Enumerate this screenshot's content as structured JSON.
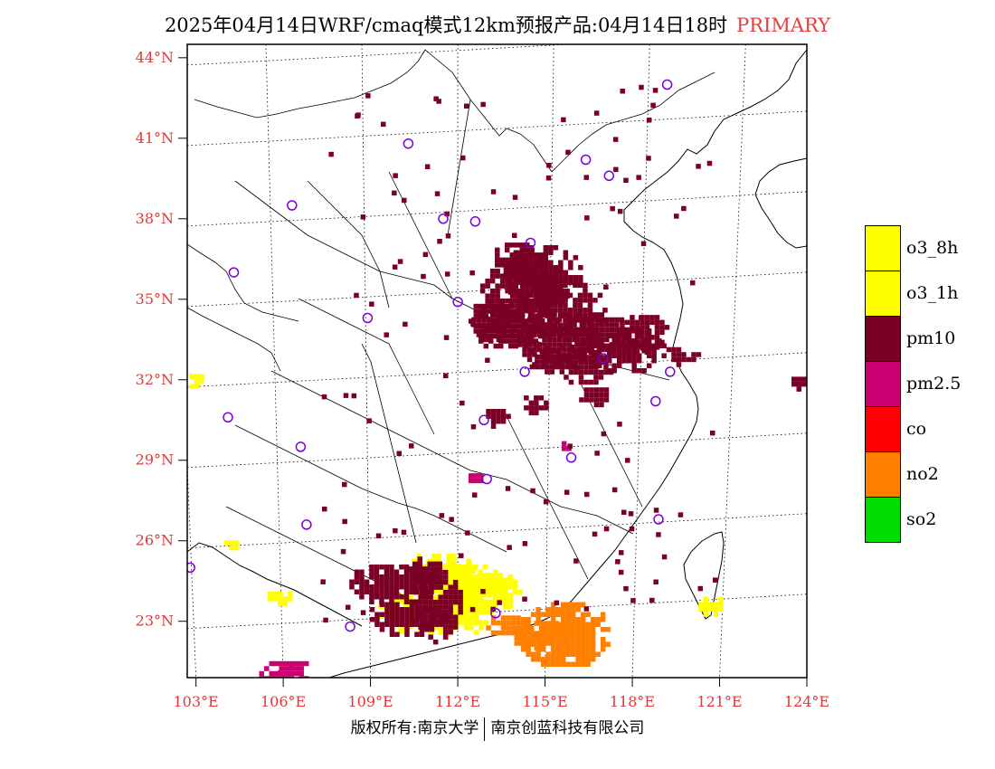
{
  "header": {
    "title": "2025年04月14日WRF/cmaq模式12km预报产品:04月14日18时",
    "tag": "PRIMARY"
  },
  "map": {
    "lat_labels": [
      "44°N",
      "41°N",
      "38°N",
      "35°N",
      "32°N",
      "29°N",
      "26°N",
      "23°N"
    ],
    "lon_labels": [
      "103°E",
      "106°E",
      "109°E",
      "112°E",
      "115°E",
      "118°E",
      "121°E",
      "124°E"
    ],
    "extent": {
      "lon_min": 102.7,
      "lon_max": 124.0,
      "lat_min": 20.9,
      "lat_max": 44.5
    },
    "grid": "dotted",
    "colors": {
      "o3_8h": "#ffff00",
      "o3_1h": "#ffff00",
      "pm10": "#7a0026",
      "pm2_5": "#cc0070",
      "co": "#ff0000",
      "no2": "#ff7f00",
      "so2": "#00dd00",
      "station": "#7b00d4"
    },
    "stations": [
      [
        110.3,
        40.8
      ],
      [
        116.4,
        40.2
      ],
      [
        117.2,
        39.6
      ],
      [
        119.2,
        43.0
      ],
      [
        106.3,
        38.5
      ],
      [
        111.5,
        38.0
      ],
      [
        112.6,
        37.9
      ],
      [
        114.5,
        37.1
      ],
      [
        104.3,
        36.0
      ],
      [
        112.0,
        34.9
      ],
      [
        108.9,
        34.3
      ],
      [
        114.3,
        32.3
      ],
      [
        117.0,
        32.8
      ],
      [
        119.3,
        32.3
      ],
      [
        104.1,
        30.6
      ],
      [
        112.9,
        30.5
      ],
      [
        118.8,
        31.2
      ],
      [
        106.6,
        29.5
      ],
      [
        115.9,
        29.1
      ],
      [
        113.0,
        28.3
      ],
      [
        106.8,
        26.6
      ],
      [
        118.9,
        26.8
      ],
      [
        102.8,
        25.0
      ],
      [
        108.3,
        22.8
      ],
      [
        113.3,
        23.3
      ]
    ],
    "pollution": {
      "pm10": [
        [
          114.8,
          36.0,
          1.4,
          1.2
        ],
        [
          114.2,
          35.2,
          1.6,
          1.5
        ],
        [
          115.5,
          34.7,
          1.6,
          1.1
        ],
        [
          113.6,
          34.2,
          1.4,
          1.0
        ],
        [
          115.3,
          33.6,
          1.6,
          1.1
        ],
        [
          116.7,
          33.9,
          1.2,
          0.8
        ],
        [
          117.6,
          33.2,
          1.5,
          0.9
        ],
        [
          118.3,
          33.8,
          0.9,
          0.8
        ],
        [
          116.3,
          32.6,
          1.0,
          0.7
        ],
        [
          115.2,
          32.9,
          0.9,
          0.6
        ],
        [
          113.0,
          34.1,
          0.7,
          0.6
        ],
        [
          114.0,
          36.6,
          0.9,
          0.7
        ],
        [
          116.6,
          31.5,
          0.6,
          0.4
        ],
        [
          114.6,
          31.2,
          0.5,
          0.4
        ],
        [
          109.7,
          24.5,
          1.6,
          0.8
        ],
        [
          110.2,
          23.2,
          1.4,
          0.7
        ],
        [
          111.2,
          23.7,
          0.9,
          1.4
        ],
        [
          110.8,
          25.0,
          0.7,
          0.6
        ],
        [
          113.3,
          30.7,
          0.5,
          0.4
        ],
        [
          119.6,
          33.0,
          0.6,
          0.4
        ],
        [
          123.7,
          32.0,
          0.4,
          0.3
        ]
      ],
      "o3": [
        [
          111.2,
          24.9,
          1.3,
          0.8
        ],
        [
          112.2,
          24.2,
          1.9,
          1.1
        ],
        [
          113.0,
          24.4,
          1.0,
          0.6
        ],
        [
          110.6,
          23.4,
          1.5,
          0.8
        ],
        [
          111.7,
          23.0,
          1.2,
          0.6
        ],
        [
          105.8,
          24.0,
          0.5,
          0.3
        ],
        [
          120.6,
          23.7,
          0.5,
          0.4
        ],
        [
          102.9,
          32.1,
          0.3,
          0.3
        ],
        [
          104.2,
          26.0,
          0.4,
          0.2
        ]
      ],
      "pm25": [
        [
          106.0,
          21.2,
          1.0,
          0.5
        ],
        [
          115.7,
          29.6,
          0.3,
          0.3
        ],
        [
          112.5,
          28.4,
          0.3,
          0.3
        ]
      ],
      "no2": [
        [
          115.6,
          22.6,
          1.6,
          1.3
        ],
        [
          114.8,
          22.6,
          1.2,
          0.6
        ],
        [
          113.6,
          22.9,
          0.8,
          0.5
        ]
      ]
    }
  },
  "legend": {
    "items": [
      {
        "label": "o3_8h",
        "color": "#ffff00"
      },
      {
        "label": "o3_1h",
        "color": "#ffff00"
      },
      {
        "label": "pm10",
        "color": "#7a0026"
      },
      {
        "label": "pm2.5",
        "color": "#cc0070"
      },
      {
        "label": "co",
        "color": "#ff0000"
      },
      {
        "label": "no2",
        "color": "#ff7f00"
      },
      {
        "label": "so2",
        "color": "#00dd00"
      }
    ]
  },
  "footer": {
    "left": "版权所有:南京大学",
    "right": "南京创蓝科技有限公司"
  }
}
